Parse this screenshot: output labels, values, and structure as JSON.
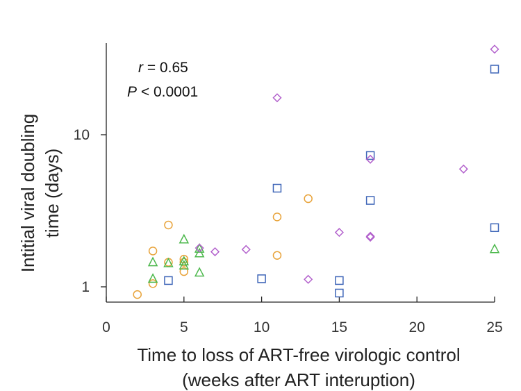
{
  "chart_data": {
    "type": "scatter",
    "title": "",
    "xlabel_lines": [
      "Time to loss of ART-free virologic control",
      "(weeks after ART interuption)"
    ],
    "ylabel_lines": [
      "Intitial viral doubling",
      "time (days)"
    ],
    "xlim": [
      0,
      25
    ],
    "ylim": [
      0.8,
      40
    ],
    "y_scale": "log",
    "x_ticks": [
      "0",
      "5",
      "10",
      "15",
      "20",
      "25"
    ],
    "y_ticks": [
      "1",
      "10"
    ],
    "annotation": {
      "r_sym": "r",
      "r_val": " = 0.65",
      "p_sym": "P",
      "p_val": " < 0.0001"
    },
    "grid": false,
    "colors": {
      "orange": "#e8a33a",
      "green": "#4cb84c",
      "blue": "#3f66b8",
      "purple": "#b260cc",
      "gray": "#999999"
    },
    "series": [
      {
        "marker": "circle",
        "color": "#e8a33a",
        "points": [
          [
            2,
            0.89
          ],
          [
            3,
            1.05
          ],
          [
            3,
            1.72
          ],
          [
            4,
            2.55
          ],
          [
            4,
            1.45
          ],
          [
            5,
            1.52
          ],
          [
            5,
            1.45
          ],
          [
            5,
            1.26
          ],
          [
            11,
            2.88
          ],
          [
            11,
            1.61
          ],
          [
            13,
            3.8
          ]
        ]
      },
      {
        "marker": "triangle",
        "color": "#4cb84c",
        "points": [
          [
            3,
            1.45
          ],
          [
            3,
            1.13
          ],
          [
            4,
            1.43
          ],
          [
            5,
            2.05
          ],
          [
            5,
            1.47
          ],
          [
            5,
            1.38
          ],
          [
            6,
            1.78
          ],
          [
            6,
            1.66
          ],
          [
            6,
            1.24
          ],
          [
            25,
            1.77
          ]
        ]
      },
      {
        "marker": "square",
        "color": "#3f66b8",
        "points": [
          [
            4,
            1.1
          ],
          [
            10,
            1.13
          ],
          [
            11,
            4.45
          ],
          [
            15,
            1.1
          ],
          [
            15,
            0.91
          ],
          [
            17,
            7.3
          ],
          [
            17,
            3.7
          ],
          [
            25,
            27
          ],
          [
            25,
            2.45
          ]
        ]
      },
      {
        "marker": "diamond",
        "color": "#b260cc",
        "points": [
          [
            6,
            1.8
          ],
          [
            7,
            1.7
          ],
          [
            9,
            1.76
          ],
          [
            11,
            17.5
          ],
          [
            13,
            1.12
          ],
          [
            15,
            2.28
          ],
          [
            17,
            6.9
          ],
          [
            17,
            2.15
          ],
          [
            17,
            2.12
          ],
          [
            23,
            5.95
          ],
          [
            25,
            36.5
          ]
        ]
      }
    ]
  }
}
